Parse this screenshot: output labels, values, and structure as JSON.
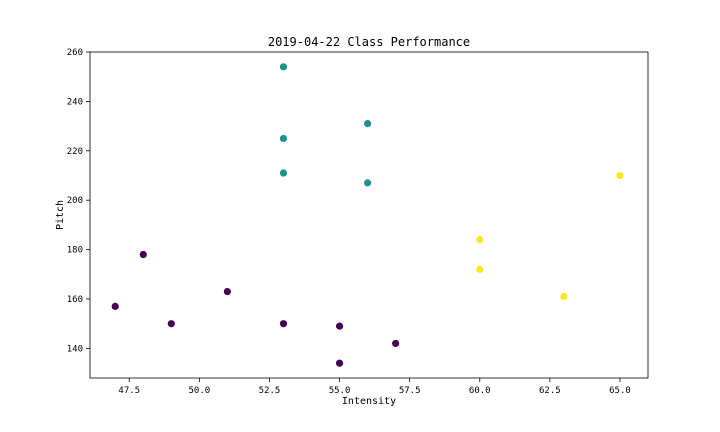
{
  "chart_data": {
    "type": "scatter",
    "title": "2019-04-22 Class Performance",
    "xlabel": "Intensity",
    "ylabel": "Pitch",
    "xlim": [
      46.1,
      66.0
    ],
    "ylim": [
      128,
      260
    ],
    "xticks": [
      47.5,
      50.0,
      52.5,
      55.0,
      57.5,
      60.0,
      62.5,
      65.0
    ],
    "xtick_labels": [
      "47.5",
      "50.0",
      "52.5",
      "55.0",
      "57.5",
      "60.0",
      "62.5",
      "65.0"
    ],
    "yticks": [
      140,
      160,
      180,
      200,
      220,
      240,
      260
    ],
    "ytick_labels": [
      "140",
      "160",
      "180",
      "200",
      "220",
      "240",
      "260"
    ],
    "grid": false,
    "series": [
      {
        "color": "#440154",
        "points": [
          [
            47,
            157
          ],
          [
            48,
            178
          ],
          [
            49,
            150
          ],
          [
            51,
            163
          ],
          [
            53,
            150
          ],
          [
            55,
            149
          ],
          [
            55,
            134
          ],
          [
            57,
            142
          ]
        ]
      },
      {
        "color": "#21918c",
        "points": [
          [
            53,
            254
          ],
          [
            53,
            225
          ],
          [
            53,
            211
          ],
          [
            56,
            231
          ],
          [
            56,
            207
          ]
        ]
      },
      {
        "color": "#fde725",
        "points": [
          [
            60,
            184
          ],
          [
            60,
            172
          ],
          [
            63,
            161
          ],
          [
            65,
            210
          ]
        ]
      }
    ]
  }
}
